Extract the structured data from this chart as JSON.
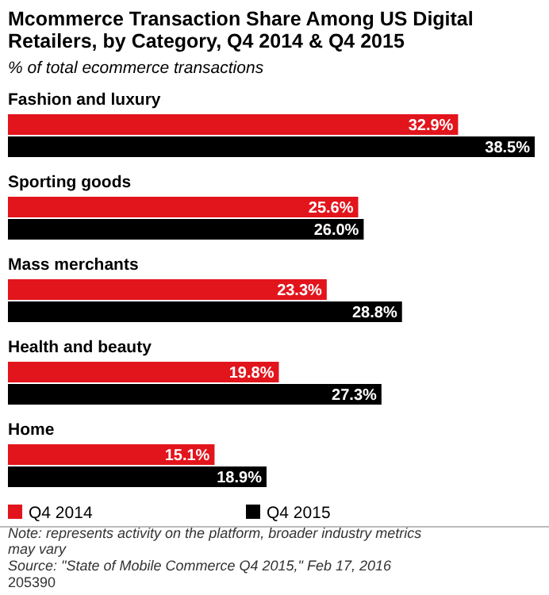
{
  "chart_data": {
    "type": "bar",
    "orientation": "horizontal",
    "title": "Mcommerce Transaction Share Among US Digital Retailers, by Category, Q4 2014 & Q4 2015",
    "subtitle": "% of total ecommerce transactions",
    "categories": [
      "Fashion and luxury",
      "Sporting goods",
      "Mass merchants",
      "Health and beauty",
      "Home"
    ],
    "series": [
      {
        "name": "Q4 2014",
        "color": "#e2141c",
        "values": [
          32.9,
          25.6,
          23.3,
          19.8,
          15.1
        ],
        "value_labels": [
          "32.9%",
          "25.6%",
          "23.3%",
          "19.8%",
          "15.1%"
        ]
      },
      {
        "name": "Q4 2015",
        "color": "#000000",
        "values": [
          38.5,
          26.0,
          28.8,
          27.3,
          18.9
        ],
        "value_labels": [
          "38.5%",
          "26.0%",
          "28.8%",
          "27.3%",
          "18.9%"
        ]
      }
    ],
    "legend": "bottom",
    "annotations": [
      "Note: represents activity on the platform, broader industry metrics may vary",
      "Source: \"State of Mobile Commerce Q4 2015,\" Feb 17, 2016",
      "205390"
    ]
  }
}
